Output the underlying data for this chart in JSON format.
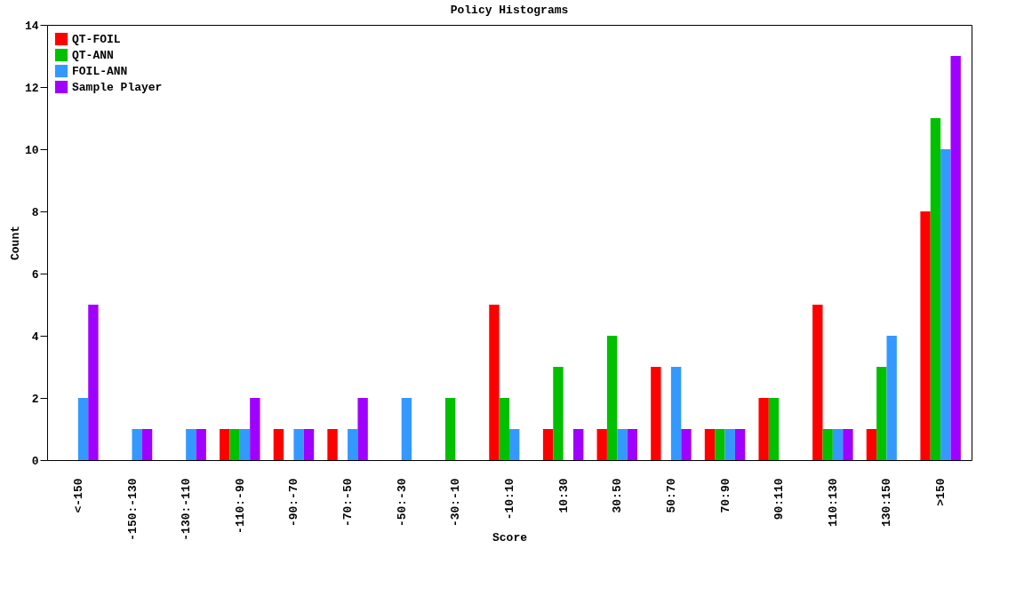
{
  "chart_data": {
    "type": "bar",
    "title": "Policy Histograms",
    "xlabel": "Score",
    "ylabel": "Count",
    "categories": [
      "<-150",
      "-150:-130",
      "-130:-110",
      "-110:-90",
      "-90:-70",
      "-70:-50",
      "-50:-30",
      "-30:-10",
      "-10:10",
      "10:30",
      "30:50",
      "50:70",
      "70:90",
      "90:110",
      "110:130",
      "130:150",
      ">150"
    ],
    "series": [
      {
        "name": "QT-FOIL",
        "color": "#ff0000",
        "values": [
          0,
          0,
          0,
          1,
          1,
          1,
          0,
          0,
          5,
          1,
          1,
          3,
          1,
          2,
          5,
          1,
          8
        ]
      },
      {
        "name": "QT-ANN",
        "color": "#00c000",
        "values": [
          0,
          0,
          0,
          1,
          0,
          0,
          0,
          2,
          2,
          3,
          4,
          0,
          1,
          2,
          1,
          3,
          11
        ]
      },
      {
        "name": "FOIL-ANN",
        "color": "#3399ff",
        "values": [
          2,
          1,
          1,
          1,
          1,
          1,
          2,
          0,
          1,
          0,
          1,
          3,
          1,
          0,
          1,
          4,
          10
        ]
      },
      {
        "name": "Sample Player",
        "color": "#a000ff",
        "values": [
          5,
          1,
          1,
          2,
          1,
          2,
          0,
          0,
          0,
          1,
          1,
          1,
          1,
          0,
          1,
          0,
          13
        ]
      }
    ],
    "ylim": [
      0,
      14
    ],
    "yticks": [
      0,
      2,
      4,
      6,
      8,
      10,
      12,
      14
    ],
    "grid": false,
    "legend": "top left"
  }
}
